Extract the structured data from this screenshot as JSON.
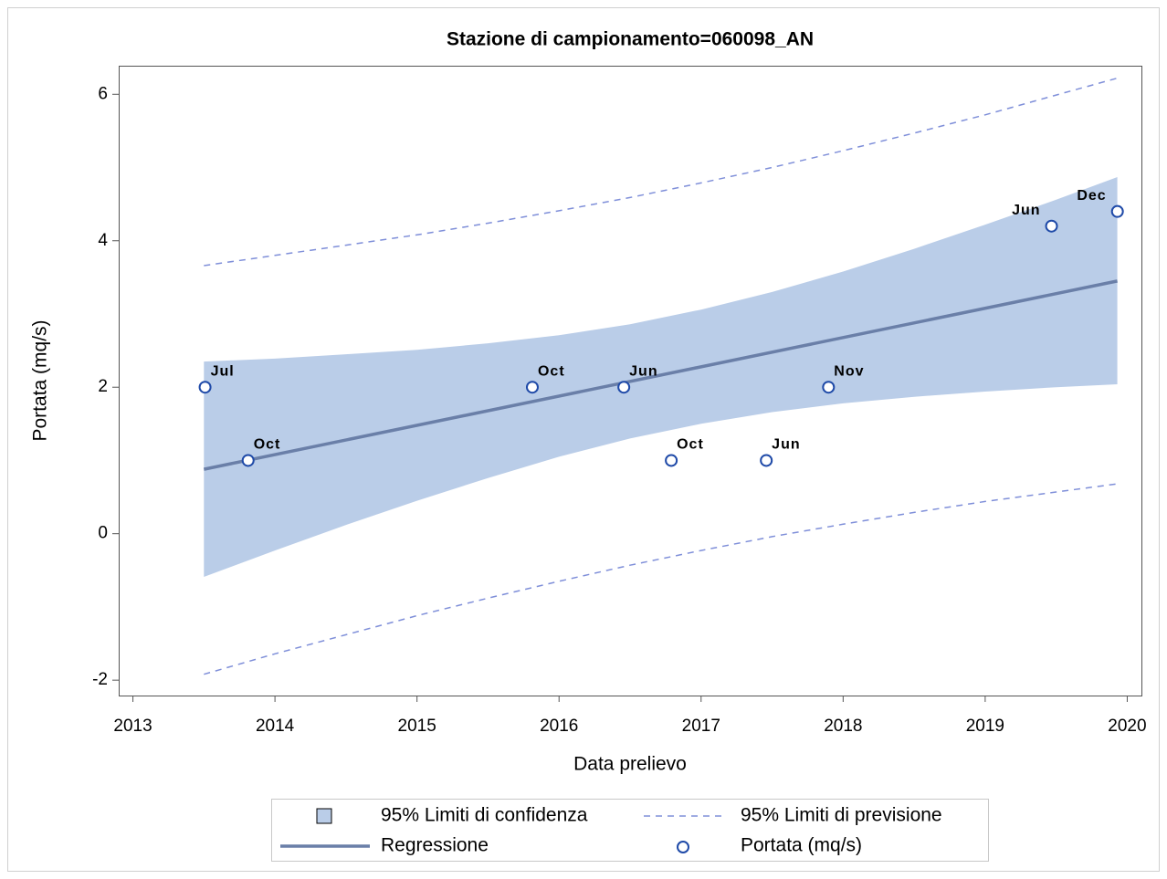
{
  "chart_data": {
    "type": "scatter",
    "title": "Stazione di campionamento=060098_AN",
    "xlabel": "Data prelievo",
    "ylabel": "Portata (mq/s)",
    "xlim": [
      2012.9,
      2020.1
    ],
    "ylim": [
      -2.21,
      6.39
    ],
    "xticks": [
      2013,
      2014,
      2015,
      2016,
      2017,
      2018,
      2019,
      2020
    ],
    "yticks": [
      -2,
      0,
      2,
      4,
      6
    ],
    "series": [
      {
        "name": "95% Limiti di confidenza",
        "type": "band",
        "color": "#bacde8",
        "x": [
          2013.5,
          2014,
          2014.5,
          2015,
          2015.5,
          2016,
          2016.5,
          2017,
          2017.5,
          2018,
          2018.5,
          2019,
          2019.5,
          2019.93
        ],
        "upper": [
          2.35,
          2.39,
          2.45,
          2.51,
          2.6,
          2.71,
          2.86,
          3.06,
          3.3,
          3.58,
          3.89,
          4.22,
          4.56,
          4.87
        ],
        "lower": [
          -0.59,
          -0.23,
          0.12,
          0.45,
          0.76,
          1.05,
          1.3,
          1.5,
          1.66,
          1.78,
          1.87,
          1.94,
          2.0,
          2.04
        ]
      },
      {
        "name": "95% Limiti di previsione",
        "type": "dashed",
        "color": "#7f8fd9",
        "x": [
          2013.5,
          2014,
          2014.5,
          2015,
          2015.5,
          2016,
          2016.5,
          2017,
          2017.5,
          2018,
          2018.5,
          2019,
          2019.5,
          2019.93
        ],
        "upper": [
          3.66,
          3.8,
          3.94,
          4.08,
          4.24,
          4.41,
          4.59,
          4.79,
          5.0,
          5.23,
          5.47,
          5.72,
          5.99,
          6.22
        ],
        "lower": [
          -1.92,
          -1.64,
          -1.38,
          -1.12,
          -0.88,
          -0.65,
          -0.43,
          -0.23,
          -0.04,
          0.13,
          0.29,
          0.44,
          0.57,
          0.68
        ]
      },
      {
        "name": "Regressione",
        "type": "line",
        "color": "#6a7fa8",
        "x": [
          2013.5,
          2019.93
        ],
        "values": [
          0.88,
          3.45
        ]
      },
      {
        "name": "Portata (mq/s)",
        "type": "scatter",
        "color": "#1f4aa8",
        "x": [
          2013.508,
          2013.811,
          2015.812,
          2016.456,
          2016.79,
          2017.459,
          2017.897,
          2019.467,
          2019.931
        ],
        "values": [
          2,
          1,
          2,
          2,
          1,
          1,
          2,
          4.2,
          4.4
        ],
        "labels": [
          "Jul",
          "Oct",
          "Oct",
          "Jun",
          "Oct",
          "Jun",
          "Nov",
          "Jun",
          "Dec"
        ]
      }
    ]
  }
}
